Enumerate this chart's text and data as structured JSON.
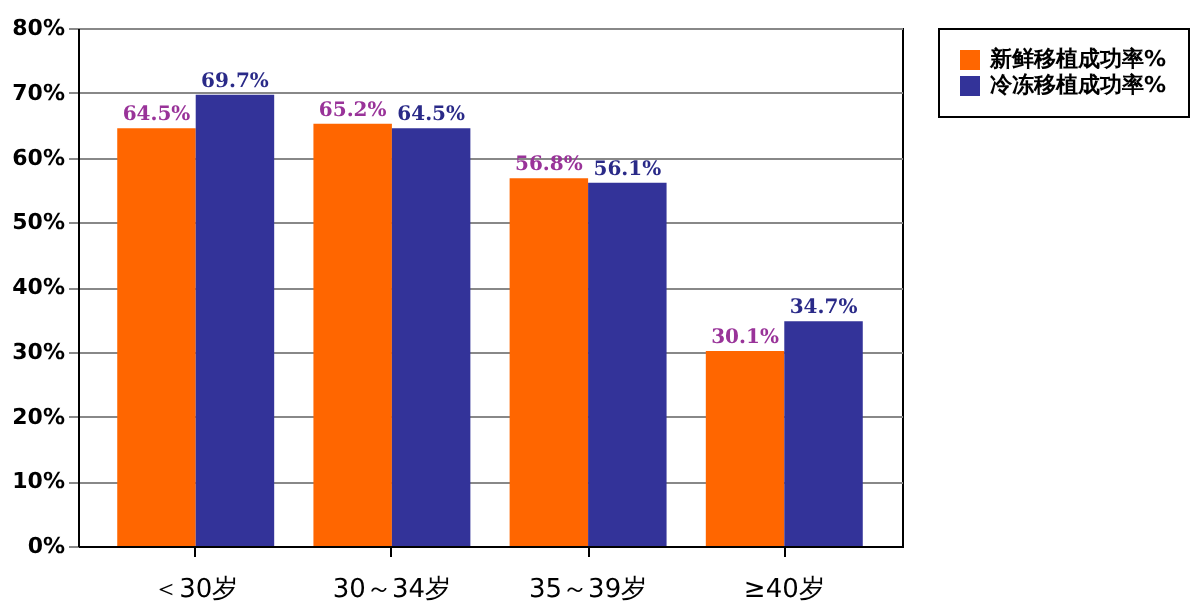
{
  "chart_data": {
    "type": "bar",
    "categories": [
      "＜30岁",
      "30～34岁",
      "35～39岁",
      "≥40岁"
    ],
    "series": [
      {
        "name": "新鲜移植成功率%",
        "color": "#ff6600",
        "values": [
          64.5,
          65.2,
          56.8,
          30.1
        ]
      },
      {
        "name": "冷冻移植成功率%",
        "color": "#333399",
        "values": [
          69.7,
          64.5,
          56.1,
          34.7
        ]
      }
    ],
    "ylim": [
      0,
      80
    ],
    "yticks": [
      {
        "value": 0,
        "label": "0%"
      },
      {
        "value": 10,
        "label": "10%"
      },
      {
        "value": 20,
        "label": "20%"
      },
      {
        "value": 30,
        "label": "30%"
      },
      {
        "value": 40,
        "label": "40%"
      },
      {
        "value": 50,
        "label": "50%"
      },
      {
        "value": 60,
        "label": "60%"
      },
      {
        "value": 70,
        "label": "70%"
      },
      {
        "value": 80,
        "label": "80%"
      }
    ],
    "value_labels": [
      [
        "64.5%",
        "65.2%",
        "56.8%",
        "30.1%"
      ],
      [
        "69.7%",
        "64.5%",
        "56.1%",
        "34.7%"
      ]
    ],
    "grid": "y",
    "legend": "right"
  }
}
